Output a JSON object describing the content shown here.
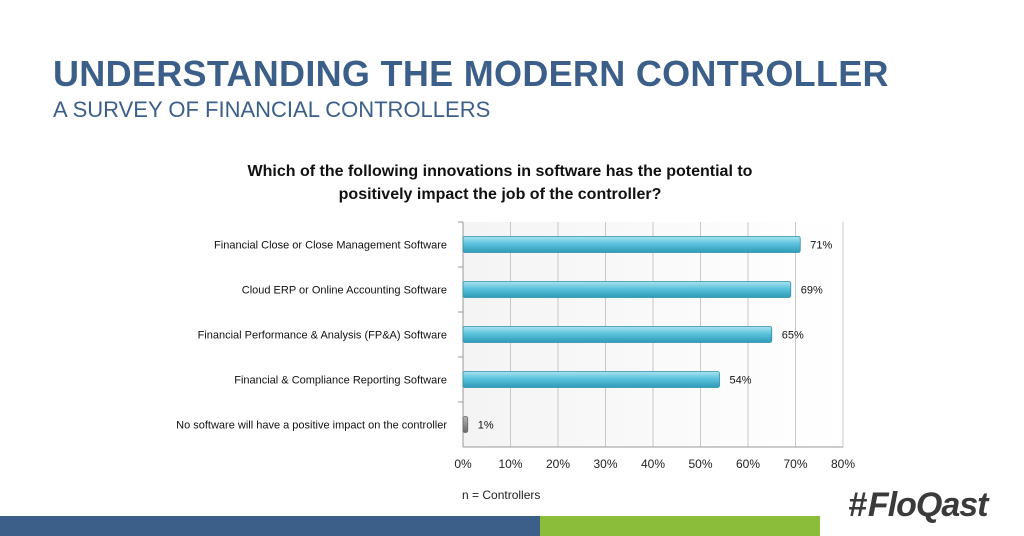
{
  "header": {
    "title": "UNDERSTANDING THE MODERN CONTROLLER",
    "subtitle": "A SURVEY OF FINANCIAL CONTROLLERS"
  },
  "brand": {
    "logo_text": "FloQast",
    "logo_mark": "#"
  },
  "colors": {
    "title": "#3c5f8a",
    "bar": "#5bc3dc",
    "bar_none": "#8a8a8a",
    "footer_blue": "#3c5f8a",
    "footer_green": "#8cbd3a"
  },
  "chart_data": {
    "type": "bar",
    "orientation": "horizontal",
    "title": "Which of the following innovations in software has the potential to positively impact the job of the controller?",
    "title_lines": [
      "Which of the following innovations in software has the potential to",
      "positively impact the job of the controller?"
    ],
    "categories": [
      "Financial Close or Close Management Software",
      "Cloud ERP or Online Accounting Software",
      "Financial Performance & Analysis (FP&A) Software",
      "Financial & Compliance Reporting Software",
      "No software will have a positive impact on the controller"
    ],
    "values": [
      71,
      69,
      65,
      54,
      1
    ],
    "value_labels": [
      "71%",
      "69%",
      "65%",
      "54%",
      "1%"
    ],
    "xlim": [
      0,
      80
    ],
    "xticks": [
      "0%",
      "10%",
      "20%",
      "30%",
      "40%",
      "50%",
      "60%",
      "70%",
      "80%"
    ],
    "grid": true,
    "note": "n = Controllers"
  }
}
